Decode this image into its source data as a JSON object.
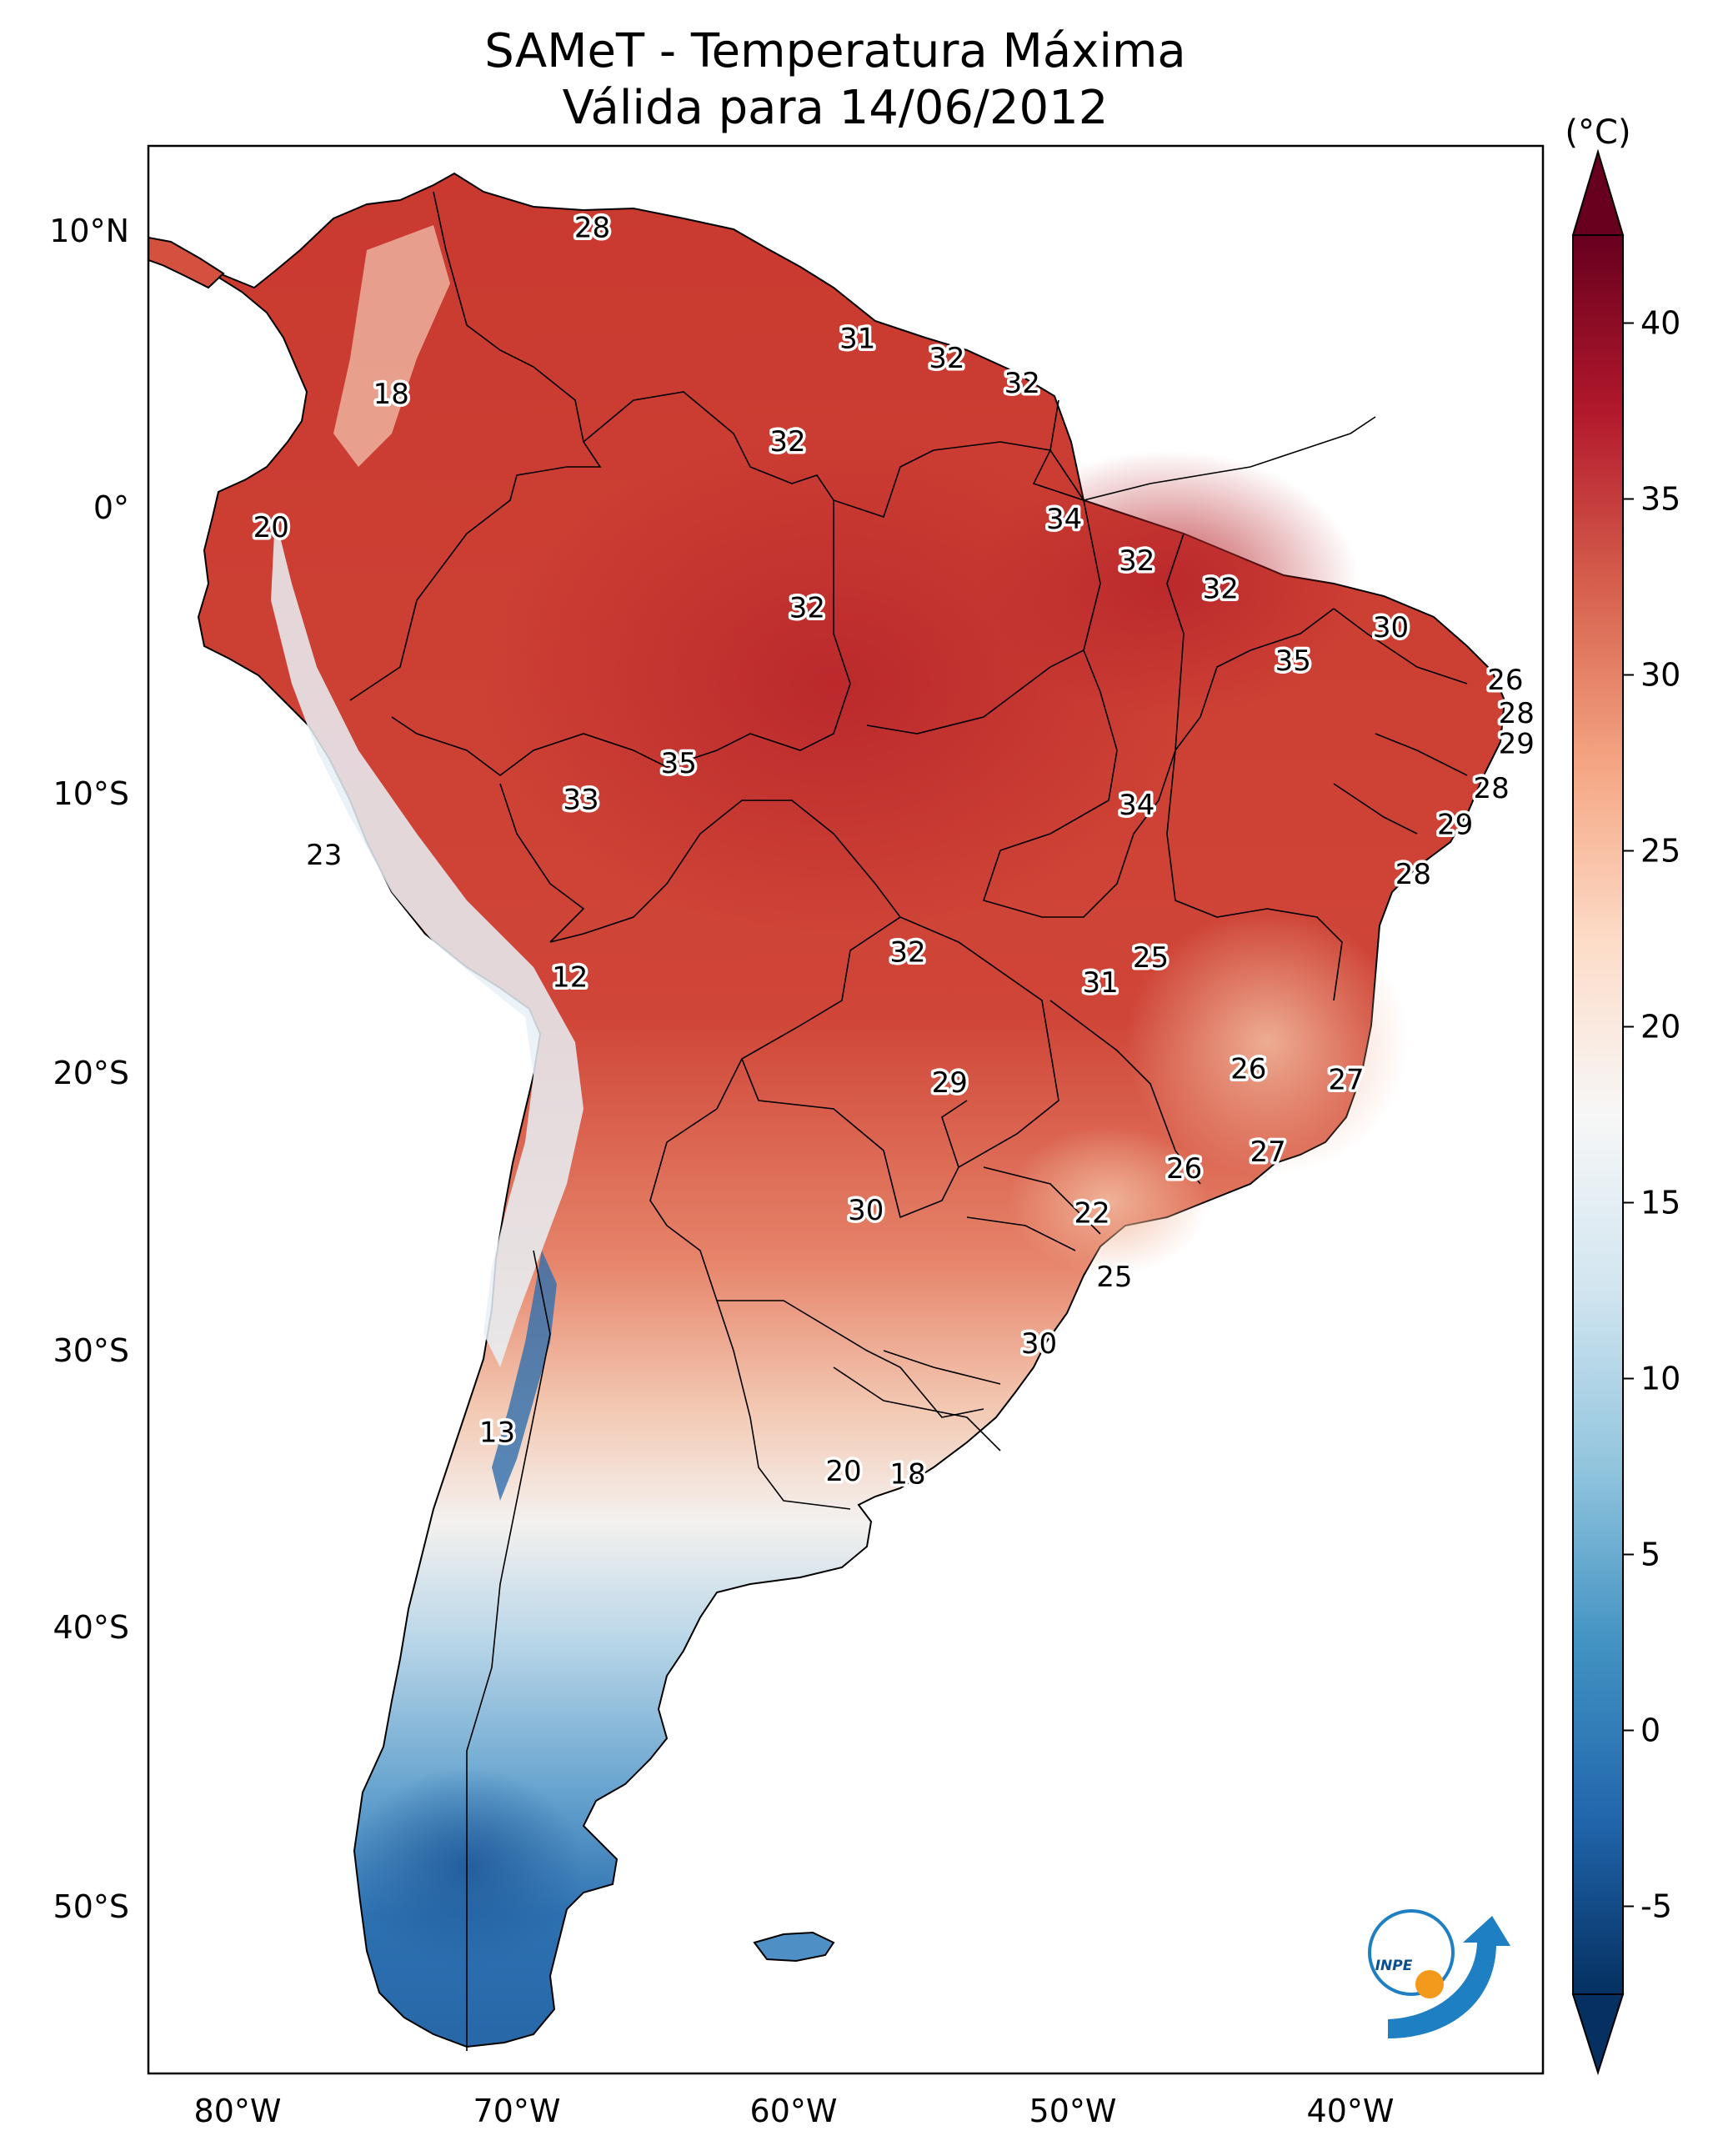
{
  "title": {
    "line1": "SAMeT - Temperatura Máxima",
    "line2": "Válida para 14/06/2012"
  },
  "axes": {
    "lon_ticks": [
      "80°W",
      "70°W",
      "60°W",
      "50°W",
      "40°W"
    ],
    "lat_ticks": [
      "10°N",
      "0°",
      "10°S",
      "20°S",
      "30°S",
      "40°S",
      "50°S"
    ]
  },
  "colorbar": {
    "unit": "(°C)",
    "ticks": [
      "40",
      "35",
      "30",
      "25",
      "20",
      "15",
      "10",
      "5",
      "0",
      "-5"
    ],
    "range": [
      -5,
      40
    ],
    "extend": "both",
    "colors": [
      "#053061",
      "#2166ac",
      "#4393c3",
      "#92c5de",
      "#d1e5f0",
      "#f7f7f7",
      "#fddbc7",
      "#f4a582",
      "#d6604d",
      "#b2182b",
      "#67001f"
    ]
  },
  "labels": [
    {
      "text": "28",
      "lon": -67.3,
      "lat": 10.5
    },
    {
      "text": "31",
      "lon": -57.8,
      "lat": 6.5
    },
    {
      "text": "32",
      "lon": -54.6,
      "lat": 5.8
    },
    {
      "text": "32",
      "lon": -51.9,
      "lat": 4.9
    },
    {
      "text": "18",
      "lon": -74.5,
      "lat": 4.5
    },
    {
      "text": "32",
      "lon": -60.3,
      "lat": 2.8
    },
    {
      "text": "34",
      "lon": -50.4,
      "lat": 0.0
    },
    {
      "text": "20",
      "lon": -78.8,
      "lat": -0.3
    },
    {
      "text": "32",
      "lon": -47.8,
      "lat": -1.5
    },
    {
      "text": "32",
      "lon": -44.8,
      "lat": -2.5
    },
    {
      "text": "32",
      "lon": -59.6,
      "lat": -3.2
    },
    {
      "text": "30",
      "lon": -38.7,
      "lat": -3.9
    },
    {
      "text": "35",
      "lon": -42.2,
      "lat": -5.1
    },
    {
      "text": "26",
      "lon": -34.6,
      "lat": -5.8
    },
    {
      "text": "28",
      "lon": -34.2,
      "lat": -7.0
    },
    {
      "text": "29",
      "lon": -34.2,
      "lat": -8.1
    },
    {
      "text": "35",
      "lon": -64.2,
      "lat": -8.8
    },
    {
      "text": "28",
      "lon": -35.1,
      "lat": -9.7
    },
    {
      "text": "33",
      "lon": -67.7,
      "lat": -10.1
    },
    {
      "text": "34",
      "lon": -47.8,
      "lat": -10.3
    },
    {
      "text": "29",
      "lon": -36.4,
      "lat": -11.0
    },
    {
      "text": "23",
      "lon": -76.9,
      "lat": -12.1
    },
    {
      "text": "28",
      "lon": -37.9,
      "lat": -12.8
    },
    {
      "text": "25",
      "lon": -47.3,
      "lat": -15.8
    },
    {
      "text": "32",
      "lon": -56.0,
      "lat": -15.6
    },
    {
      "text": "31",
      "lon": -49.1,
      "lat": -16.7
    },
    {
      "text": "12",
      "lon": -68.1,
      "lat": -16.5
    },
    {
      "text": "26",
      "lon": -43.8,
      "lat": -19.8
    },
    {
      "text": "27",
      "lon": -40.3,
      "lat": -20.2
    },
    {
      "text": "29",
      "lon": -54.5,
      "lat": -20.3
    },
    {
      "text": "27",
      "lon": -43.1,
      "lat": -22.8
    },
    {
      "text": "26",
      "lon": -46.1,
      "lat": -23.4
    },
    {
      "text": "22",
      "lon": -49.4,
      "lat": -25.0
    },
    {
      "text": "30",
      "lon": -57.5,
      "lat": -24.9
    },
    {
      "text": "25",
      "lon": -48.6,
      "lat": -27.3
    },
    {
      "text": "30",
      "lon": -51.3,
      "lat": -29.7
    },
    {
      "text": "13",
      "lon": -70.7,
      "lat": -32.9
    },
    {
      "text": "20",
      "lon": -58.3,
      "lat": -34.3
    },
    {
      "text": "18",
      "lon": -56.0,
      "lat": -34.4
    }
  ],
  "logo": {
    "text": "INPE"
  }
}
